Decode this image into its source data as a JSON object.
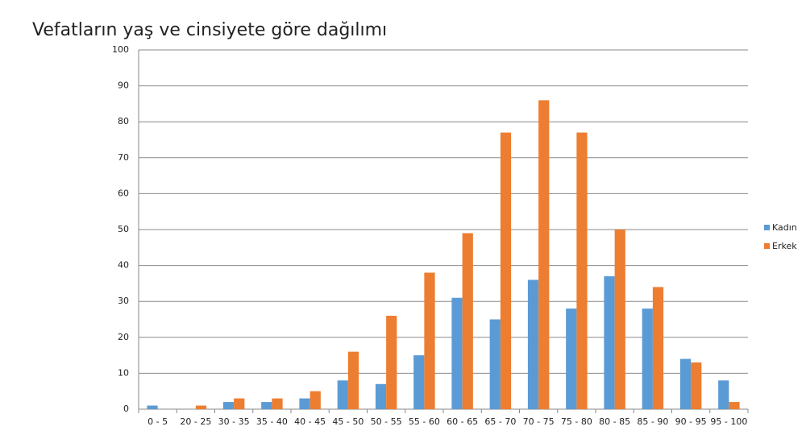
{
  "chart_data": {
    "type": "bar",
    "title": "Vefatların yaş ve cinsiyete göre dağılımı",
    "categories": [
      "0 - 5",
      "20 - 25",
      "30 - 35",
      "35 - 40",
      "40 - 45",
      "45 - 50",
      "50 - 55",
      "55 - 60",
      "60 - 65",
      "65 - 70",
      "70 - 75",
      "75 - 80",
      "80 - 85",
      "85 - 90",
      "90 - 95",
      "95 - 100"
    ],
    "series": [
      {
        "name": "Kadın",
        "color": "#5b9bd5",
        "values": [
          1,
          0,
          2,
          2,
          3,
          8,
          7,
          15,
          31,
          25,
          36,
          28,
          37,
          28,
          14,
          8
        ]
      },
      {
        "name": "Erkek",
        "color": "#ed7d31",
        "values": [
          0,
          1,
          3,
          3,
          5,
          16,
          26,
          38,
          49,
          77,
          86,
          77,
          50,
          34,
          13,
          2
        ]
      }
    ],
    "ylim": [
      0,
      100
    ],
    "yticks": [
      0,
      10,
      20,
      30,
      40,
      50,
      60,
      70,
      80,
      90,
      100
    ],
    "grid": true,
    "legend": "right"
  }
}
